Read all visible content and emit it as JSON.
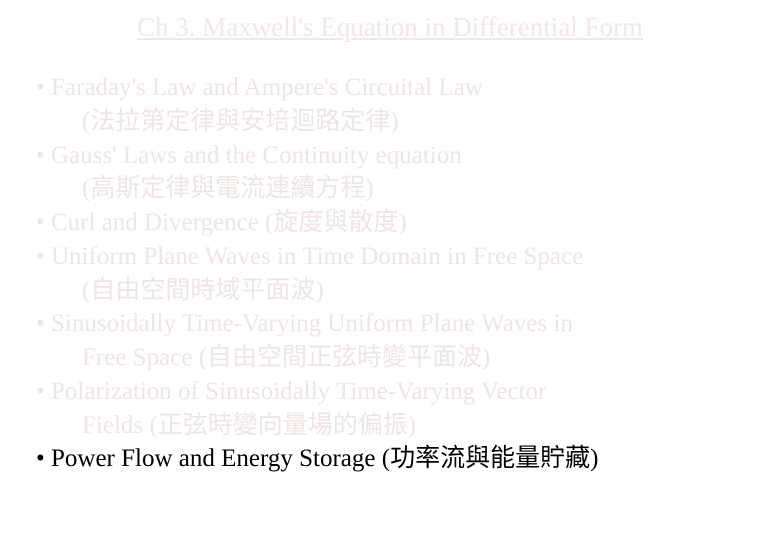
{
  "title": "Ch 3. Maxwell's Equation in Differential Form",
  "colors": {
    "faded": "#f0e4e4",
    "normal": "#000000",
    "background": "#ffffff"
  },
  "typography": {
    "title_fontsize": 27,
    "body_fontsize": 25,
    "font_family": "Times New Roman"
  },
  "items": [
    {
      "main": "• Faraday's Law and Ampere's Circuital Law",
      "sub": "(法拉第定律與安培迴路定律)",
      "faded": true
    },
    {
      "main": "• Gauss' Laws and the Continuity equation",
      "sub": "(高斯定律與電流連續方程)",
      "faded": true
    },
    {
      "main": "• Curl and Divergence (旋度與散度)",
      "sub": "",
      "faded": true
    },
    {
      "main": "• Uniform Plane Waves in Time Domain in Free Space",
      "sub": "(自由空間時域平面波)",
      "faded": true
    },
    {
      "main": "• Sinusoidally Time-Varying Uniform Plane Waves in",
      "sub": "Free Space (自由空間正弦時變平面波)",
      "faded": true
    },
    {
      "main": "• Polarization of Sinusoidally Time-Varying Vector",
      "sub": "Fields (正弦時變向量場的偏振)",
      "faded": true
    },
    {
      "main": "• Power Flow and Energy Storage (功率流與能量貯藏)",
      "sub": "",
      "faded": false
    }
  ]
}
